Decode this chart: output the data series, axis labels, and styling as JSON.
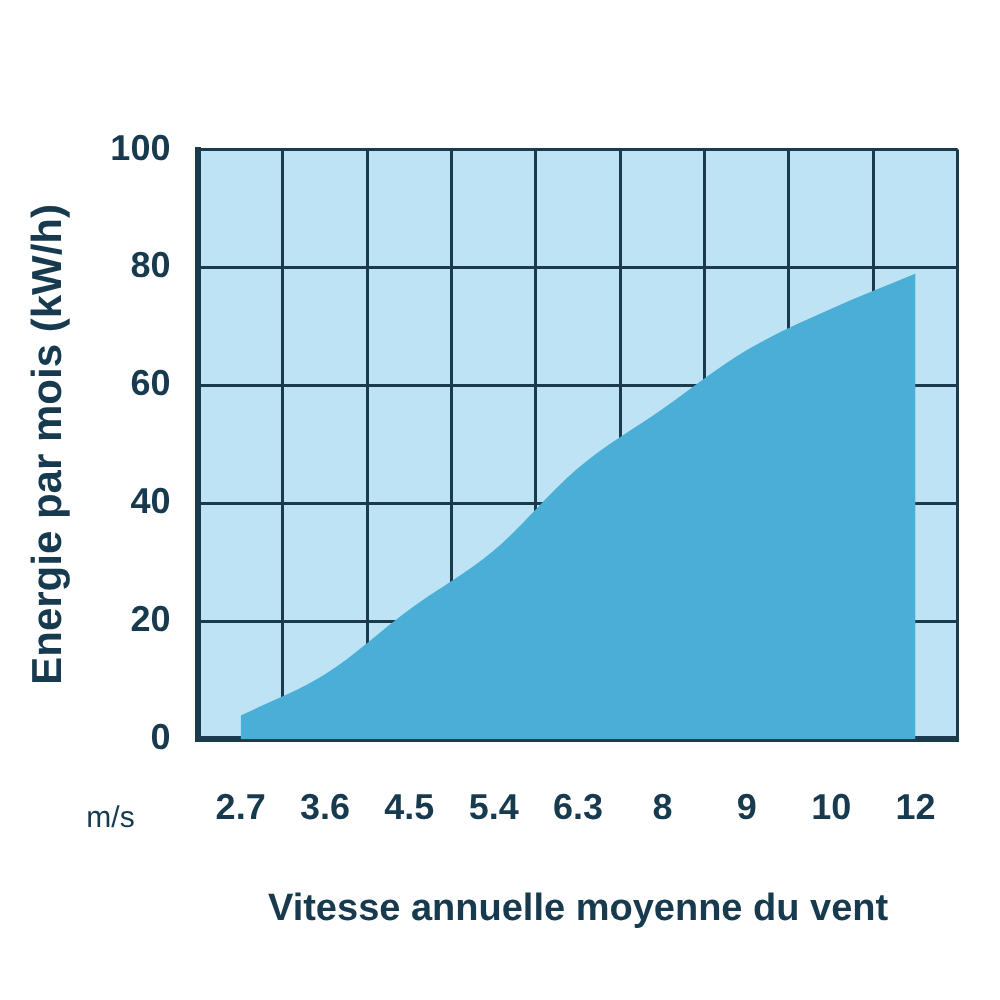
{
  "chart_data": {
    "type": "area",
    "xlabel": "Vitesse annuelle moyenne du vent",
    "ylabel": "Energie par mois (kW/h)",
    "annotations": [
      "m/s"
    ],
    "categories": [
      "2.7",
      "3.6",
      "4.5",
      "5.4",
      "6.3",
      "8",
      "9",
      "10",
      "12"
    ],
    "series": [
      {
        "color": "#4aaed6",
        "values": [
          4,
          11,
          22,
          32,
          46,
          56,
          66,
          73,
          79
        ]
      }
    ],
    "ylim": [
      0,
      100
    ],
    "yticks": [
      0,
      20,
      40,
      60,
      80,
      100
    ],
    "grid": true,
    "legend": false
  }
}
